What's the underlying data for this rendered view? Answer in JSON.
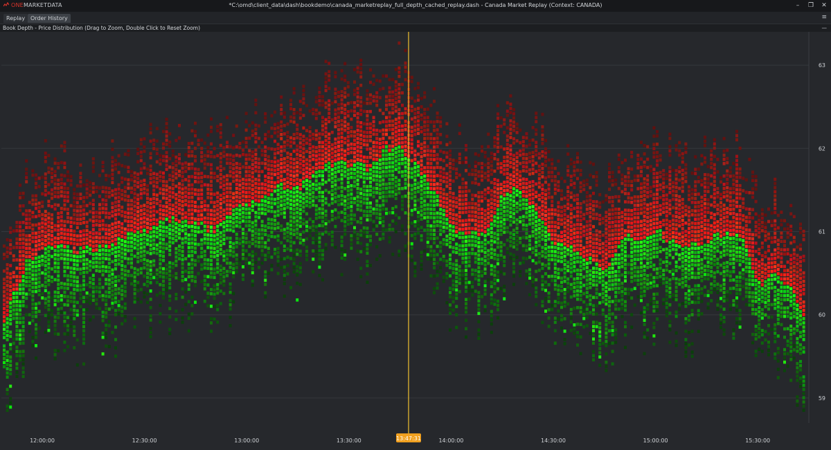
{
  "app": {
    "logo_one": "ONE",
    "logo_rest": "MARKETDATA",
    "window_title": "*C:\\omd\\client_data\\dash\\bookdemo\\canada_marketreplay_full_depth_cached_replay.dash - Canada Market Replay (Context: CANADA)"
  },
  "window_controls": {
    "minimize": "–",
    "restore": "❐",
    "close": "✕"
  },
  "tabs": [
    {
      "label": "Replay",
      "active": false
    },
    {
      "label": "Order History",
      "active": true
    }
  ],
  "tab_menu_icon": "≡",
  "panel": {
    "title": "Book Depth - Price Distribution (Drag to Zoom, Double Click to Reset Zoom)",
    "close": "—"
  },
  "colors": {
    "bid": "#1ed41e",
    "ask": "#e62a22",
    "cursor": "#f2c230",
    "cursor_label_bg": "#f0a020",
    "background": "#26282c"
  },
  "chart_data": {
    "type": "heatmap",
    "title": "Book Depth - Price Distribution",
    "x_ticks": [
      "12:00:00",
      "12:30:00",
      "13:00:00",
      "13:30:00",
      "14:00:00",
      "14:30:00",
      "15:00:00",
      "15:30:00"
    ],
    "y_ticks": [
      63,
      62,
      61,
      60,
      59
    ],
    "ylim": [
      58.7,
      63.4
    ],
    "time_range": [
      "11:48:00",
      "15:45:00"
    ],
    "cursor_time": "13:47:31",
    "mid_price_series": {
      "name": "",
      "x": [
        "11:48",
        "11:55",
        "12:00",
        "12:05",
        "12:10",
        "12:15",
        "12:20",
        "12:25",
        "12:30",
        "12:35",
        "12:40",
        "12:45",
        "12:50",
        "12:55",
        "13:00",
        "13:05",
        "13:10",
        "13:15",
        "13:20",
        "13:25",
        "13:30",
        "13:35",
        "13:40",
        "13:45",
        "13:50",
        "13:55",
        "14:00",
        "14:05",
        "14:10",
        "14:15",
        "14:20",
        "14:25",
        "14:30",
        "14:35",
        "14:40",
        "14:45",
        "14:50",
        "14:55",
        "15:00",
        "15:05",
        "15:10",
        "15:15",
        "15:20",
        "15:25",
        "15:30",
        "15:35",
        "15:40",
        "15:45"
      ],
      "y": [
        59.9,
        60.7,
        60.8,
        60.9,
        60.8,
        60.85,
        60.9,
        61.0,
        61.05,
        61.15,
        61.2,
        61.15,
        61.05,
        61.3,
        61.35,
        61.5,
        61.6,
        61.55,
        61.8,
        61.85,
        61.85,
        61.8,
        62.05,
        62.05,
        61.8,
        61.5,
        61.1,
        61.0,
        61.05,
        61.5,
        61.55,
        61.3,
        60.9,
        60.85,
        60.7,
        60.6,
        61.0,
        60.95,
        61.05,
        60.9,
        60.9,
        60.95,
        61.05,
        61.0,
        60.4,
        60.6,
        60.3,
        59.9
      ]
    }
  }
}
